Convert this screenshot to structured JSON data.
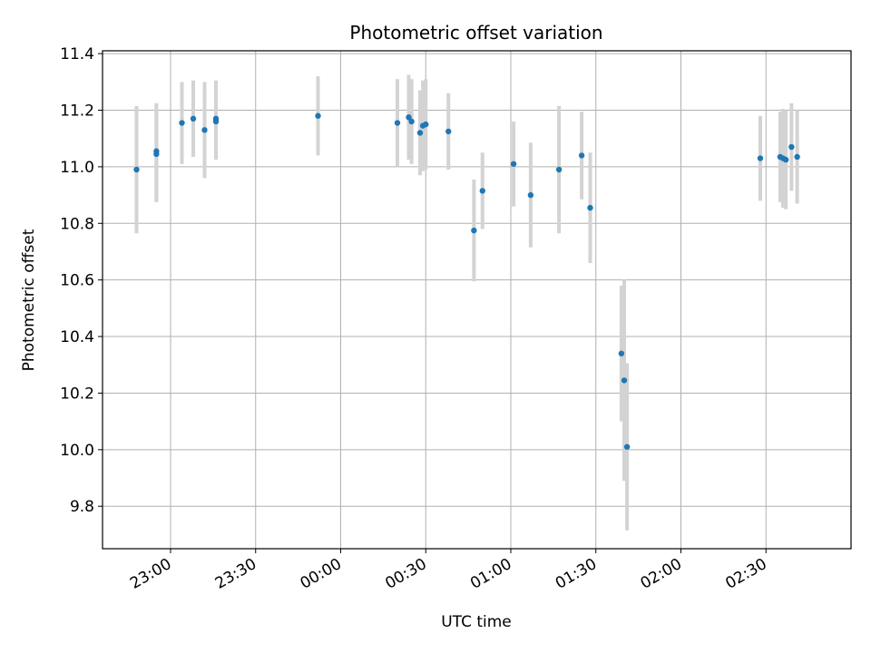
{
  "chart_data": {
    "type": "scatter",
    "title": "Photometric offset variation",
    "xlabel": "UTC time",
    "ylabel": "Photometric offset",
    "grid": true,
    "marker_color": "#1f77b4",
    "errorbar_color": "#d3d3d3",
    "xaxis": {
      "unit": "UTC time",
      "range": [
        "22:36",
        "03:00"
      ],
      "tick_labels": [
        "23:00",
        "23:30",
        "00:00",
        "00:30",
        "01:00",
        "01:30",
        "02:00",
        "02:30"
      ]
    },
    "yaxis": {
      "range": [
        9.65,
        11.41
      ],
      "tick_labels": [
        "9.8",
        "10.0",
        "10.2",
        "10.4",
        "10.6",
        "10.8",
        "11.0",
        "11.2",
        "11.4"
      ]
    },
    "points": [
      {
        "x": "22:48",
        "y": 10.99,
        "err": 0.225
      },
      {
        "x": "22:55",
        "y": 11.045,
        "err": 0.17
      },
      {
        "x": "22:55",
        "y": 11.055,
        "err": 0.17
      },
      {
        "x": "23:04",
        "y": 11.155,
        "err": 0.145
      },
      {
        "x": "23:08",
        "y": 11.17,
        "err": 0.135
      },
      {
        "x": "23:12",
        "y": 11.13,
        "err": 0.17
      },
      {
        "x": "23:16",
        "y": 11.17,
        "err": 0.135
      },
      {
        "x": "23:16",
        "y": 11.16,
        "err": 0.135
      },
      {
        "x": "23:52",
        "y": 11.18,
        "err": 0.14
      },
      {
        "x": "00:20",
        "y": 11.155,
        "err": 0.155
      },
      {
        "x": "00:24",
        "y": 11.175,
        "err": 0.15
      },
      {
        "x": "00:25",
        "y": 11.16,
        "err": 0.15
      },
      {
        "x": "00:28",
        "y": 11.12,
        "err": 0.15
      },
      {
        "x": "00:29",
        "y": 11.145,
        "err": 0.16
      },
      {
        "x": "00:30",
        "y": 11.15,
        "err": 0.16
      },
      {
        "x": "00:38",
        "y": 11.125,
        "err": 0.135
      },
      {
        "x": "00:47",
        "y": 10.775,
        "err": 0.18
      },
      {
        "x": "00:50",
        "y": 10.915,
        "err": 0.135
      },
      {
        "x": "01:01",
        "y": 11.01,
        "err": 0.15
      },
      {
        "x": "01:07",
        "y": 10.9,
        "err": 0.185
      },
      {
        "x": "01:17",
        "y": 10.99,
        "err": 0.225
      },
      {
        "x": "01:25",
        "y": 11.04,
        "err": 0.155
      },
      {
        "x": "01:28",
        "y": 10.855,
        "err": 0.195
      },
      {
        "x": "01:39",
        "y": 10.34,
        "err": 0.24
      },
      {
        "x": "01:40",
        "y": 10.245,
        "err": 0.355
      },
      {
        "x": "01:41",
        "y": 10.01,
        "err": 0.295
      },
      {
        "x": "02:28",
        "y": 11.03,
        "err": 0.15
      },
      {
        "x": "02:35",
        "y": 11.035,
        "err": 0.16
      },
      {
        "x": "02:36",
        "y": 11.03,
        "err": 0.175
      },
      {
        "x": "02:37",
        "y": 11.025,
        "err": 0.175
      },
      {
        "x": "02:39",
        "y": 11.07,
        "err": 0.155
      },
      {
        "x": "02:41",
        "y": 11.035,
        "err": 0.165
      }
    ]
  }
}
